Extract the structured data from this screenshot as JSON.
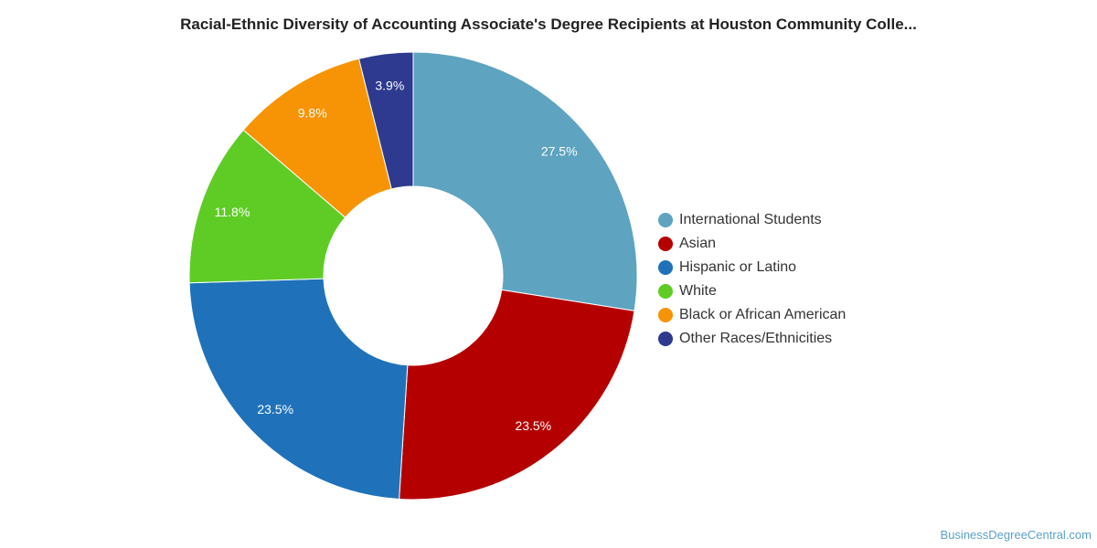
{
  "chart_data": {
    "type": "pie",
    "donut": true,
    "title": "Racial-Ethnic Diversity of Accounting Associate's Degree Recipients at Houston Community Colle...",
    "slices": [
      {
        "name": "International Students",
        "value": 27.5,
        "label": "27.5%",
        "color": "#5ea3c0"
      },
      {
        "name": "Asian",
        "value": 23.5,
        "label": "23.5%",
        "color": "#b50000"
      },
      {
        "name": "Hispanic or Latino",
        "value": 23.5,
        "label": "23.5%",
        "color": "#1f72b9"
      },
      {
        "name": "White",
        "value": 11.8,
        "label": "11.8%",
        "color": "#5fcc26"
      },
      {
        "name": "Black or African American",
        "value": 9.8,
        "label": "9.8%",
        "color": "#f79405"
      },
      {
        "name": "Other Races/Ethnicities",
        "value": 3.9,
        "label": "3.9%",
        "color": "#2d3a8f"
      }
    ],
    "legend_position": "right"
  },
  "source": "BusinessDegreeCentral.com"
}
